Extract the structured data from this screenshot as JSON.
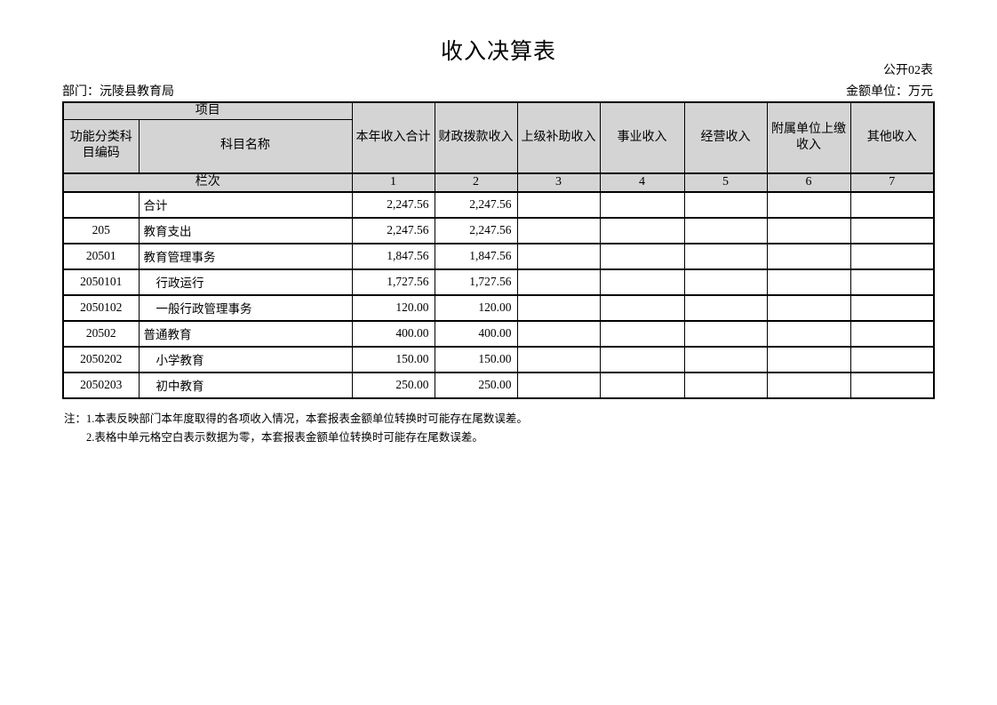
{
  "page": {
    "title": "收入决算表",
    "table_code": "公开02表",
    "department": "部门：沅陵县教育局",
    "unit": "金额单位：万元"
  },
  "table": {
    "project_header": "项目",
    "code_header": "功能分类科目编码",
    "name_header": "科目名称",
    "value_headers": [
      "本年收入合计",
      "财政拨款收入",
      "上级补助收入",
      "事业收入",
      "经营收入",
      "附属单位上缴收入",
      "其他收入"
    ],
    "row_label": "栏次",
    "column_numbers": [
      "1",
      "2",
      "3",
      "4",
      "5",
      "6",
      "7"
    ],
    "rows": [
      {
        "code": "",
        "name": "合计",
        "indent": false,
        "values": [
          "2,247.56",
          "2,247.56",
          "",
          "",
          "",
          "",
          ""
        ]
      },
      {
        "code": "205",
        "name": "教育支出",
        "indent": false,
        "values": [
          "2,247.56",
          "2,247.56",
          "",
          "",
          "",
          "",
          ""
        ]
      },
      {
        "code": "20501",
        "name": "教育管理事务",
        "indent": false,
        "values": [
          "1,847.56",
          "1,847.56",
          "",
          "",
          "",
          "",
          ""
        ]
      },
      {
        "code": "2050101",
        "name": "行政运行",
        "indent": true,
        "values": [
          "1,727.56",
          "1,727.56",
          "",
          "",
          "",
          "",
          ""
        ]
      },
      {
        "code": "2050102",
        "name": "一般行政管理事务",
        "indent": true,
        "values": [
          "120.00",
          "120.00",
          "",
          "",
          "",
          "",
          ""
        ]
      },
      {
        "code": "20502",
        "name": "普通教育",
        "indent": false,
        "values": [
          "400.00",
          "400.00",
          "",
          "",
          "",
          "",
          ""
        ]
      },
      {
        "code": "2050202",
        "name": "小学教育",
        "indent": true,
        "values": [
          "150.00",
          "150.00",
          "",
          "",
          "",
          "",
          ""
        ]
      },
      {
        "code": "2050203",
        "name": "初中教育",
        "indent": true,
        "values": [
          "250.00",
          "250.00",
          "",
          "",
          "",
          "",
          ""
        ]
      }
    ]
  },
  "notes": [
    "注：1.本表反映部门本年度取得的各项收入情况，本套报表金额单位转换时可能存在尾数误差。",
    "2.表格中单元格空白表示数据为零，本套报表金额单位转换时可能存在尾数误差。"
  ],
  "colors": {
    "header_bg": "#d4d4d4",
    "border": "#000000",
    "background": "#ffffff"
  }
}
